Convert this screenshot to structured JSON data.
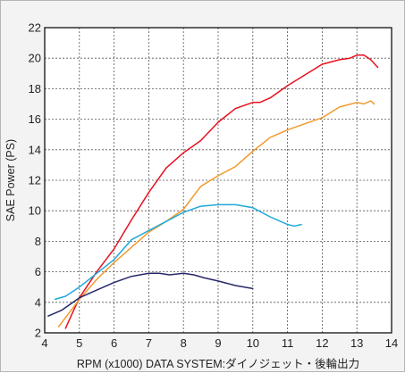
{
  "chart_data": {
    "type": "line",
    "xlabel": "RPM (x1000) DATA SYSTEM:ダイノジェット・後輪出力",
    "ylabel": "SAE Power (PS)",
    "xlim": [
      4,
      14
    ],
    "ylim": [
      2,
      22
    ],
    "xticks": [
      4,
      5,
      6,
      7,
      8,
      9,
      10,
      11,
      12,
      13,
      14
    ],
    "yticks": [
      2,
      4,
      6,
      8,
      10,
      12,
      14,
      16,
      18,
      20,
      22
    ],
    "grid": true,
    "series": [
      {
        "color": "#e8101e",
        "x": [
          4.6,
          4.8,
          5.0,
          5.5,
          6.0,
          6.5,
          7.0,
          7.5,
          8.0,
          8.5,
          9.0,
          9.5,
          10.0,
          10.2,
          10.5,
          11.0,
          11.5,
          12.0,
          12.5,
          12.8,
          13.0,
          13.2,
          13.4,
          13.6
        ],
        "y": [
          2.3,
          3.3,
          4.3,
          6.0,
          7.5,
          9.4,
          11.2,
          12.8,
          13.8,
          14.6,
          15.8,
          16.7,
          17.1,
          17.1,
          17.4,
          18.2,
          18.9,
          19.6,
          19.9,
          20.0,
          20.2,
          20.2,
          19.9,
          19.4
        ]
      },
      {
        "color": "#f29a2e",
        "x": [
          4.4,
          4.7,
          5.0,
          5.5,
          6.0,
          6.5,
          7.0,
          7.5,
          8.0,
          8.5,
          9.0,
          9.5,
          10.0,
          10.5,
          11.0,
          11.5,
          12.0,
          12.5,
          13.0,
          13.2,
          13.4,
          13.5
        ],
        "y": [
          2.4,
          3.3,
          4.2,
          5.5,
          6.6,
          7.6,
          8.6,
          9.3,
          10.1,
          11.6,
          12.3,
          12.9,
          13.9,
          14.8,
          15.3,
          15.7,
          16.1,
          16.8,
          17.1,
          17.0,
          17.2,
          17.0
        ]
      },
      {
        "color": "#1fa8d8",
        "x": [
          4.3,
          4.6,
          5.0,
          5.5,
          6.0,
          6.5,
          7.0,
          7.5,
          8.0,
          8.5,
          9.0,
          9.5,
          10.0,
          10.5,
          11.0,
          11.2,
          11.4
        ],
        "y": [
          4.2,
          4.4,
          5.0,
          5.9,
          6.8,
          8.1,
          8.7,
          9.3,
          9.9,
          10.3,
          10.4,
          10.4,
          10.2,
          9.6,
          9.1,
          9.0,
          9.1
        ]
      },
      {
        "color": "#27286b",
        "x": [
          4.1,
          4.5,
          5.0,
          5.5,
          6.0,
          6.5,
          7.0,
          7.3,
          7.6,
          8.0,
          8.3,
          8.6,
          9.0,
          9.5,
          10.0
        ],
        "y": [
          3.1,
          3.5,
          4.3,
          4.8,
          5.3,
          5.7,
          5.9,
          5.9,
          5.8,
          5.9,
          5.8,
          5.6,
          5.4,
          5.1,
          4.9
        ]
      }
    ]
  }
}
